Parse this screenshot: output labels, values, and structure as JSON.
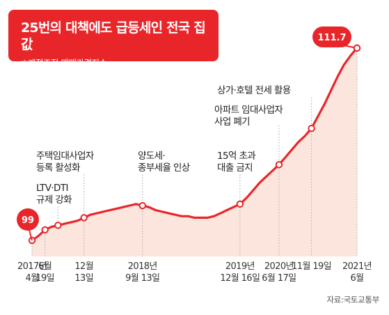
{
  "title": "25번의 대책에도 급등세인 전국 집값",
  "subtitle": "※계절조정 매매가격지수",
  "source": "자료:국토교통부",
  "colors": {
    "accent": "#e8262a",
    "area": "#fce5dd",
    "marker": "#ffffff"
  },
  "chart_data": {
    "type": "area",
    "title": "25번의 대책에도 급등세인 전국 집값",
    "subtitle": "※계절조정 매매가격지수",
    "xlabel": "",
    "ylabel": "",
    "ylim": [
      97,
      113
    ],
    "grid": false,
    "start_label": "99",
    "end_label": "111.7",
    "series": [
      {
        "name": "",
        "x": [
          "2017-04",
          "2017-05",
          "2017-06",
          "2017-07",
          "2017-08",
          "2017-09",
          "2017-10",
          "2017-11",
          "2017-12",
          "2018-01",
          "2018-02",
          "2018-03",
          "2018-04",
          "2018-05",
          "2018-06",
          "2018-07",
          "2018-08",
          "2018-09",
          "2018-10",
          "2018-11",
          "2018-12",
          "2019-01",
          "2019-02",
          "2019-03",
          "2019-04",
          "2019-05",
          "2019-06",
          "2019-07",
          "2019-08",
          "2019-09",
          "2019-10",
          "2019-11",
          "2019-12",
          "2020-01",
          "2020-02",
          "2020-03",
          "2020-04",
          "2020-05",
          "2020-06",
          "2020-07",
          "2020-08",
          "2020-09",
          "2020-10",
          "2020-11",
          "2020-12",
          "2021-01",
          "2021-02",
          "2021-03",
          "2021-04",
          "2021-05",
          "2021-06"
        ],
        "values": [
          99.0,
          99.3,
          99.7,
          99.9,
          100.0,
          100.1,
          100.2,
          100.3,
          100.5,
          100.7,
          100.8,
          100.9,
          101.0,
          101.1,
          101.2,
          101.3,
          101.4,
          101.3,
          101.2,
          101.0,
          100.9,
          100.8,
          100.7,
          100.6,
          100.6,
          100.5,
          100.5,
          100.5,
          100.6,
          100.8,
          101.0,
          101.2,
          101.4,
          101.8,
          102.3,
          102.8,
          103.2,
          103.6,
          104.0,
          104.5,
          105.0,
          105.5,
          105.9,
          106.4,
          107.2,
          108.0,
          108.9,
          109.8,
          110.6,
          111.2,
          111.7
        ]
      }
    ],
    "annotations": [
      {
        "text": "LTV·DTI\n규제 강화",
        "x": "2017-08"
      },
      {
        "text": "주택임대사업자\n등록 활성화",
        "x": "2017-12"
      },
      {
        "text": "양도세·\n종부세율 인상",
        "x": "2018-09"
      },
      {
        "text": "15억 초과\n대출 금지",
        "x": "2019-12"
      },
      {
        "text": "아파트 임대사업자\n사업 폐기",
        "x": "2020-06"
      },
      {
        "text": "상가·호텔 전세 활용",
        "x": "2020-11"
      }
    ],
    "x_tick_labels": [
      {
        "text": "2017년\n4월",
        "x": "2017-04"
      },
      {
        "text": "6월\n19일",
        "x": "2017-06"
      },
      {
        "text": "12월\n13일",
        "x": "2017-12"
      },
      {
        "text": "2018년\n9월 13일",
        "x": "2018-09"
      },
      {
        "text": "2019년\n12월 16일",
        "x": "2019-12"
      },
      {
        "text": "2020년\n6월 17일",
        "x": "2020-06"
      },
      {
        "text": "11월 19일",
        "x": "2020-11"
      },
      {
        "text": "2021년\n6월",
        "x": "2021-06"
      }
    ]
  }
}
